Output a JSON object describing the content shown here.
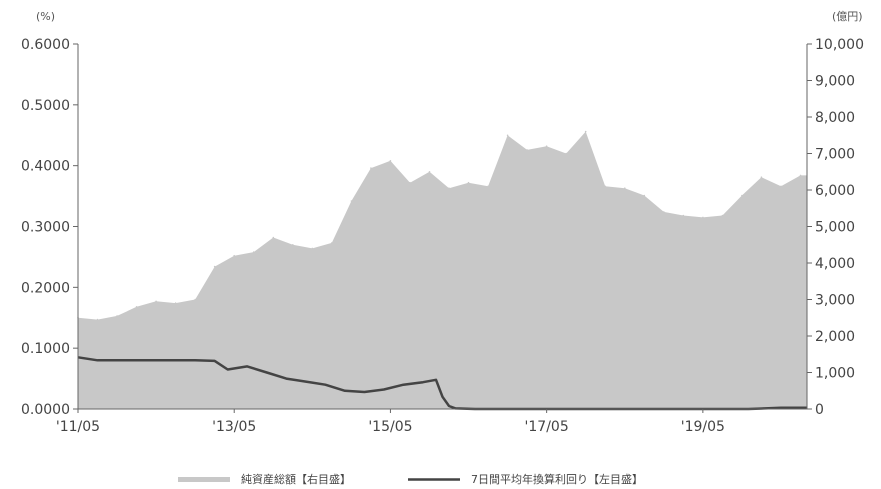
{
  "chart_data": {
    "type": "area",
    "left_unit": "(%)",
    "right_unit": "(億円)",
    "x_tick_labels": [
      "'11/05",
      "'13/05",
      "'15/05",
      "'17/05",
      "'19/05"
    ],
    "left_axis": {
      "min": 0,
      "max": 0.6,
      "ticks": [
        "0.0000",
        "0.1000",
        "0.2000",
        "0.3000",
        "0.4000",
        "0.5000",
        "0.6000"
      ]
    },
    "right_axis": {
      "min": 0,
      "max": 10000,
      "ticks": [
        "0",
        "1,000",
        "2,000",
        "3,000",
        "4,000",
        "5,000",
        "6,000",
        "7,000",
        "8,000",
        "9,000",
        "10,000"
      ]
    },
    "x_range": [
      "2011-05",
      "2020-09"
    ],
    "series": [
      {
        "name": "純資産総額【右目盛】",
        "type": "area",
        "axis": "right",
        "color": "#c8c8c8",
        "x": [
          "2011-05",
          "2011-08",
          "2011-11",
          "2012-02",
          "2012-05",
          "2012-08",
          "2012-11",
          "2013-02",
          "2013-05",
          "2013-08",
          "2013-11",
          "2014-02",
          "2014-05",
          "2014-08",
          "2014-11",
          "2015-02",
          "2015-05",
          "2015-08",
          "2015-11",
          "2016-02",
          "2016-05",
          "2016-08",
          "2016-11",
          "2017-02",
          "2017-05",
          "2017-08",
          "2017-11",
          "2018-02",
          "2018-05",
          "2018-08",
          "2018-11",
          "2019-02",
          "2019-05",
          "2019-08",
          "2019-11",
          "2020-02",
          "2020-05",
          "2020-08"
        ],
        "values": [
          2500,
          2450,
          2550,
          2800,
          2950,
          2900,
          3000,
          3900,
          4200,
          4300,
          4700,
          4500,
          4400,
          4550,
          5700,
          6600,
          6800,
          6200,
          6500,
          6050,
          6200,
          6100,
          7500,
          7100,
          7200,
          7000,
          7600,
          6100,
          6050,
          5850,
          5400,
          5300,
          5250,
          5300,
          5850,
          6350,
          6100,
          6400
        ]
      },
      {
        "name": "7日間平均年換算利回り【左目盛】",
        "type": "line",
        "axis": "left",
        "color": "#444444",
        "x": [
          "2011-05",
          "2011-08",
          "2011-11",
          "2012-02",
          "2012-05",
          "2012-08",
          "2012-11",
          "2013-02",
          "2013-04",
          "2013-07",
          "2013-10",
          "2014-01",
          "2014-04",
          "2014-07",
          "2014-10",
          "2015-01",
          "2015-04",
          "2015-07",
          "2015-10",
          "2015-12",
          "2016-01",
          "2016-02",
          "2016-03",
          "2016-06",
          "2017-01",
          "2018-01",
          "2019-01",
          "2019-12",
          "2020-05",
          "2020-09"
        ],
        "values": [
          0.085,
          0.08,
          0.08,
          0.08,
          0.08,
          0.08,
          0.08,
          0.079,
          0.065,
          0.07,
          0.06,
          0.05,
          0.045,
          0.04,
          0.03,
          0.028,
          0.032,
          0.04,
          0.044,
          0.048,
          0.02,
          0.005,
          0.001,
          0.0,
          0.0,
          0.0,
          0.0,
          0.0,
          0.002,
          0.002
        ]
      }
    ]
  }
}
